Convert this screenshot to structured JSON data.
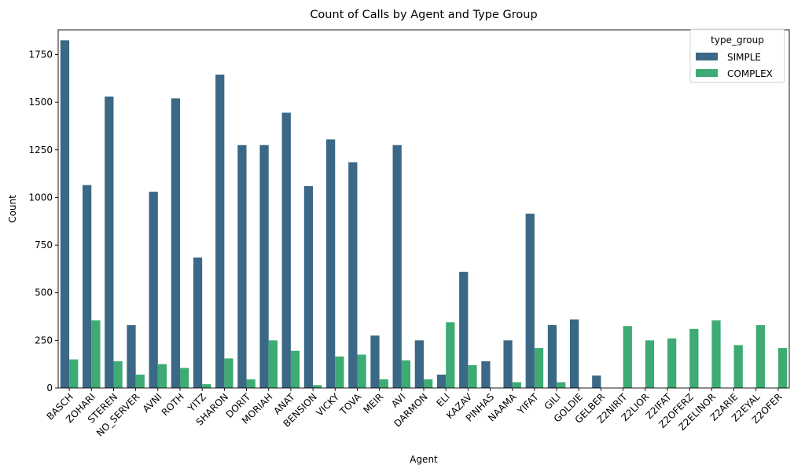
{
  "chart_data": {
    "type": "bar",
    "title": "Count of Calls by Agent and Type Group",
    "xlabel": "Agent",
    "ylabel": "Count",
    "ylim": [
      0,
      1880
    ],
    "yticks": [
      0,
      250,
      500,
      750,
      1000,
      1250,
      1500,
      1750
    ],
    "grid": false,
    "legend": {
      "title": "type_group",
      "placement": "top-right"
    },
    "categories": [
      "BASCH",
      "ZOHARI",
      "STEREN",
      "NO_SERVER",
      "AVNI",
      "ROTH",
      "YITZ",
      "SHARON",
      "DORIT",
      "MORIAH",
      "ANAT",
      "BENSION",
      "VICKY",
      "TOVA",
      "MEIR",
      "AVI",
      "DARMON",
      "ELI",
      "KAZAV",
      "PINHAS",
      "NAAMA",
      "YIFAT",
      "GILI",
      "GOLDIE",
      "GELBER",
      "Z2NIRIT",
      "Z2LIOR",
      "Z2IFAT",
      "Z2OFERZ",
      "Z2ELINOR",
      "Z2ARIE",
      "Z2EYAL",
      "Z2OFER"
    ],
    "series": [
      {
        "name": "SIMPLE",
        "color": "#3b6886",
        "values": [
          1825,
          1065,
          1530,
          330,
          1030,
          1520,
          685,
          1645,
          1275,
          1275,
          1445,
          1060,
          1305,
          1185,
          275,
          1275,
          250,
          70,
          610,
          140,
          250,
          915,
          330,
          360,
          65,
          0,
          0,
          0,
          0,
          0,
          0,
          0,
          0
        ]
      },
      {
        "name": "COMPLEX",
        "color": "#3dab73",
        "values": [
          150,
          355,
          140,
          70,
          125,
          105,
          20,
          155,
          45,
          250,
          195,
          15,
          165,
          175,
          45,
          145,
          45,
          345,
          120,
          0,
          30,
          210,
          30,
          0,
          0,
          325,
          250,
          260,
          310,
          355,
          225,
          330,
          210
        ]
      }
    ]
  }
}
